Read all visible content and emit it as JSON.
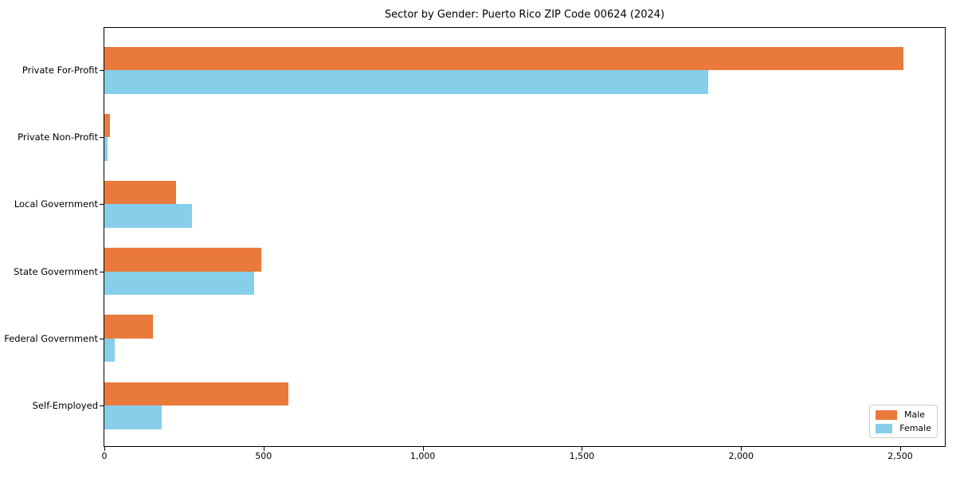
{
  "chart_data": {
    "type": "bar",
    "orientation": "horizontal",
    "title": "Sector by Gender: Puerto Rico ZIP Code 00624 (2024)",
    "categories": [
      "Private For-Profit",
      "Private Non-Profit",
      "Local Government",
      "State Government",
      "Federal Government",
      "Self-Employed"
    ],
    "series": [
      {
        "name": "Male",
        "color": "#E97A3C",
        "values": [
          2510,
          18,
          226,
          492,
          152,
          577
        ]
      },
      {
        "name": "Female",
        "color": "#87CEEB",
        "values": [
          1898,
          10,
          275,
          471,
          33,
          180
        ]
      }
    ],
    "xlabel": "",
    "ylabel": "",
    "xlim": [
      0,
      2640
    ],
    "xticks": [
      0,
      500,
      1000,
      1500,
      2000,
      2500
    ],
    "xtick_labels": [
      "0",
      "500",
      "1,000",
      "1,500",
      "2,000",
      "2,500"
    ],
    "legend_position": "lower right",
    "grid": false,
    "spine_color": "#000000",
    "background_color": "#ffffff"
  }
}
